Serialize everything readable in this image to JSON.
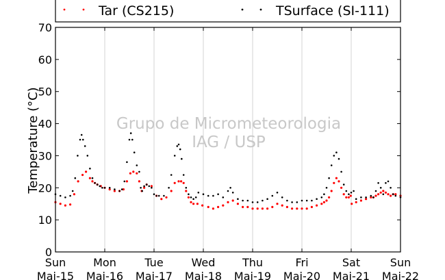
{
  "chart_data": {
    "type": "scatter",
    "ylabel": "Temperature (°C)",
    "ylim": [
      0,
      70
    ],
    "yticks": [
      0,
      10,
      20,
      30,
      40,
      50,
      60,
      70
    ],
    "xlim_days": [
      0,
      7
    ],
    "x_tick_days": [
      {
        "day": "Sun",
        "date": "Mai-15"
      },
      {
        "day": "Mon",
        "date": "Mai-16"
      },
      {
        "day": "Tue",
        "date": "Mai-17"
      },
      {
        "day": "Wed",
        "date": "Mai-18"
      },
      {
        "day": "Thu",
        "date": "Mai-19"
      },
      {
        "day": "Fri",
        "date": "Mai-20"
      },
      {
        "day": "Sat",
        "date": "Mai-21"
      },
      {
        "day": "Sun",
        "date": "Mai-22"
      }
    ],
    "grid": "vertical",
    "legend_position": "top",
    "watermark": [
      "Grupo de Micrometeorologia",
      "IAG / USP"
    ],
    "series": [
      {
        "name": "Tar (CS215)",
        "color": "#ff0000",
        "x": [
          0,
          0.1,
          0.2,
          0.3,
          0.38,
          0.46,
          0.55,
          0.62,
          0.7,
          0.75,
          0.8,
          0.85,
          0.92,
          1.0,
          1.1,
          1.2,
          1.3,
          1.38,
          1.45,
          1.52,
          1.58,
          1.65,
          1.7,
          1.75,
          1.8,
          1.85,
          1.95,
          2.05,
          2.15,
          2.25,
          2.35,
          2.42,
          2.5,
          2.55,
          2.6,
          2.65,
          2.7,
          2.75,
          2.8,
          2.88,
          2.98,
          3.1,
          3.2,
          3.3,
          3.4,
          3.5,
          3.6,
          3.7,
          3.8,
          3.9,
          4.0,
          4.1,
          4.2,
          4.3,
          4.4,
          4.5,
          4.6,
          4.7,
          4.8,
          4.9,
          5.0,
          5.1,
          5.2,
          5.3,
          5.4,
          5.45,
          5.5,
          5.55,
          5.6,
          5.65,
          5.7,
          5.75,
          5.8,
          5.85,
          5.9,
          5.95,
          5.99,
          6.01,
          6.1,
          6.2,
          6.3,
          6.4,
          6.45,
          6.5,
          6.55,
          6.6,
          6.65,
          6.7,
          6.75,
          6.8,
          6.85,
          6.9,
          7.0
        ],
        "y": [
          15.5,
          15,
          14.5,
          14.8,
          18,
          22,
          24,
          25,
          23,
          22,
          21.5,
          21,
          20.5,
          20,
          19.5,
          19,
          19,
          19.5,
          22,
          24.5,
          25,
          24.5,
          22,
          19,
          20,
          21,
          20.5,
          17.5,
          16.5,
          17,
          19,
          21.5,
          22,
          22,
          21.5,
          19,
          17,
          15.5,
          15,
          15,
          14.5,
          14,
          13.5,
          14,
          14.5,
          15.5,
          16,
          15,
          14,
          14,
          13.5,
          13.5,
          13.5,
          13.5,
          14,
          15,
          14.5,
          14,
          13.5,
          13.5,
          13.5,
          13.5,
          14,
          14.5,
          15,
          15.5,
          16,
          17,
          19,
          21.5,
          23,
          22,
          20,
          18,
          17,
          17,
          17.5,
          15,
          15.5,
          16,
          16.5,
          17,
          17,
          17.5,
          18,
          18.5,
          19,
          18.5,
          18,
          17.5,
          18,
          18,
          17.5
        ]
      },
      {
        "name": "TSurface (SI-111)",
        "color": "#000000",
        "x": [
          0,
          0.1,
          0.2,
          0.3,
          0.35,
          0.4,
          0.45,
          0.5,
          0.53,
          0.56,
          0.6,
          0.65,
          0.7,
          0.75,
          0.8,
          0.85,
          0.9,
          0.95,
          1.0,
          1.1,
          1.2,
          1.3,
          1.35,
          1.4,
          1.45,
          1.5,
          1.53,
          1.56,
          1.6,
          1.65,
          1.7,
          1.73,
          1.76,
          1.8,
          1.85,
          1.9,
          1.95,
          2.0,
          2.05,
          2.1,
          2.2,
          2.3,
          2.35,
          2.42,
          2.47,
          2.5,
          2.53,
          2.56,
          2.6,
          2.65,
          2.7,
          2.75,
          2.8,
          2.85,
          2.9,
          3.0,
          3.1,
          3.2,
          3.3,
          3.4,
          3.5,
          3.55,
          3.6,
          3.7,
          3.8,
          3.9,
          4.0,
          4.1,
          4.2,
          4.3,
          4.4,
          4.5,
          4.6,
          4.7,
          4.8,
          4.9,
          5.0,
          5.1,
          5.2,
          5.3,
          5.4,
          5.45,
          5.5,
          5.55,
          5.6,
          5.65,
          5.7,
          5.75,
          5.8,
          5.85,
          5.9,
          5.95,
          6.0,
          6.05,
          6.1,
          6.2,
          6.3,
          6.4,
          6.45,
          6.5,
          6.55,
          6.6,
          6.65,
          6.7,
          6.75,
          6.8,
          6.85,
          6.9,
          7.0
        ],
        "y": [
          18,
          17.5,
          17,
          17.5,
          19,
          23,
          30,
          35,
          36.5,
          35,
          33,
          30,
          26,
          23,
          21.5,
          21,
          20.5,
          20,
          20,
          20,
          19.5,
          19,
          19.5,
          22,
          28,
          35,
          37,
          35,
          31,
          27,
          25,
          20,
          19,
          20.5,
          21,
          20.5,
          20,
          18,
          17.5,
          17.5,
          17.5,
          20,
          24,
          30,
          33,
          33.5,
          32,
          29,
          24,
          20,
          18,
          17,
          16.5,
          17,
          18.5,
          18,
          17.5,
          17.5,
          18,
          17,
          19,
          20,
          18.5,
          16.5,
          16,
          16,
          15.5,
          15.5,
          16,
          16.5,
          17.5,
          18.5,
          17,
          16,
          15.5,
          15.5,
          16,
          16,
          16,
          16.5,
          17,
          18,
          20,
          23,
          27,
          30,
          31,
          29,
          25,
          21,
          19,
          18,
          18.5,
          19,
          16.5,
          17,
          17,
          17.5,
          17,
          19,
          21.5,
          20,
          18,
          21.5,
          22,
          20,
          18,
          17.5,
          17
        ]
      }
    ]
  }
}
